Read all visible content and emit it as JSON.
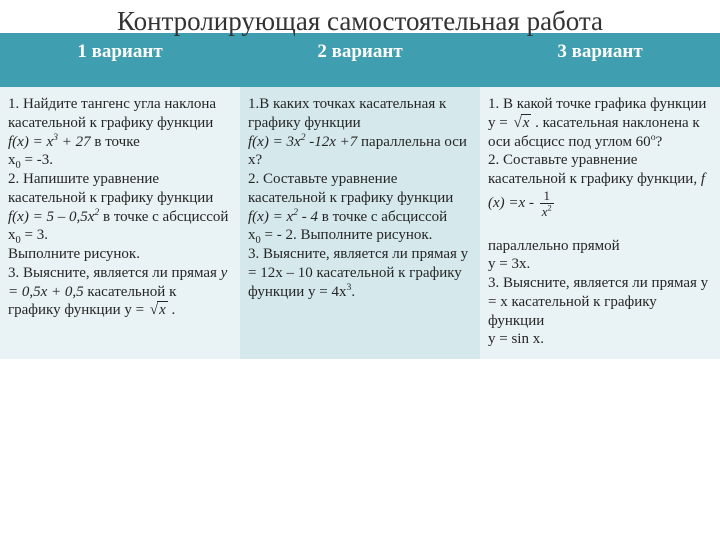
{
  "title": "Контролирующая самостоятельная работа",
  "columns": {
    "h1": "1 вариант",
    "h2": "2 вариант",
    "h3": "3 вариант"
  },
  "variant1": {
    "p1a": "1. Найдите тангенс  угла наклона касательной к графику функции",
    "p1b_fx": "f(x) = x",
    "p1b_exp": "3",
    "p1b_rest": " + 27",
    "p1b_tail": " в точке",
    "p1c_x0": "x",
    "p1c_sub": "0",
    "p1c_eq": " = -3.",
    "p2a": "2. Напишите уравнение касательной к графику функции ",
    "p2b_fx": "f(x) = 5 – 0,5x",
    "p2b_exp": "2",
    "p2c": " в точке с абсциссой x",
    "p2c_sub": "0",
    "p2c_eq": " = 3.",
    "p2d": "Выполните рисунок.",
    "p3a": "3. Выясните, является ли прямая ",
    "p3b": "y = 0,5x + 0,5",
    "p3c": " касательной к графику функции y = ",
    "sqrt_x": "x",
    "p3d": " ."
  },
  "variant2": {
    "p1a": "1.В каких точках касательная к графику функции",
    "p1b_fx": " f(x) = 3x",
    "p1b_e1": "2",
    "p1b_mid": " -12x +7",
    "p1c": " параллельна оси x?",
    "p2a": "2. Составьте уравнение касательной к графику функции ",
    "p2b_fx": "f(x) = x",
    "p2b_e1": "2",
    "p2b_rest": " - 4",
    "p2c": " в точке с абсциссой",
    "p2d_x0": "x",
    "p2d_sub": "0",
    "p2d_eq": " =  - 2. Выполните рисунок.",
    "p3a": "3. Выясните, является ли прямая y = 12x – 10 касательной к графику функции y = 4x",
    "p3a_exp": "3",
    "p3a_dot": "."
  },
  "variant3": {
    "p1a": "1. В какой точке графика функции y = ",
    "sqrt_x": "x",
    "p1b": " . касательная наклонена к оси абсцисс под углом 60",
    "p1b_deg": "o",
    "p1b_q": "?",
    "p2a": "2. Составьте уравнение касательной к графику функции,   ",
    "p2b_fx": "f (x) =",
    "p2b_x": "x",
    "p2b_minus": " - ",
    "frac_num": "1",
    "frac_den_x": "x",
    "frac_den_exp": "2",
    "p2c": " параллельно прямой",
    "p2d": "y = 3x.",
    "p3a": "3. Выясните, является ли прямая y = x касательной к графику функции",
    "p3b": "y = sin x."
  },
  "colors": {
    "header_bg": "#3f9eaf",
    "header_text": "#ffffff",
    "cell_light": "#e9f3f5",
    "cell_mid": "#d5e9ed",
    "text": "#262626"
  }
}
